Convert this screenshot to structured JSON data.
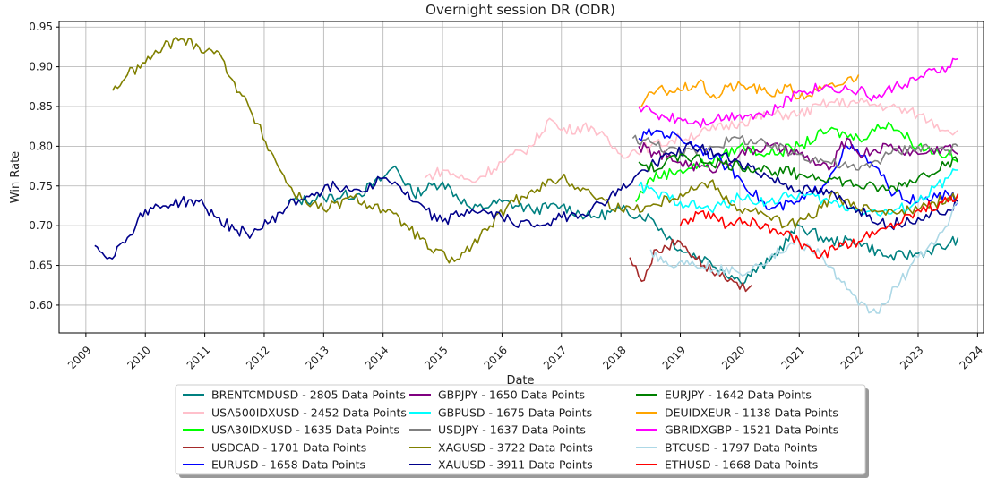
{
  "chart_data": {
    "type": "line",
    "title": "Overnight session DR (ODR)",
    "xlabel": "Date",
    "ylabel": "Win Rate",
    "xlim": [
      2008.55,
      2024.1
    ],
    "ylim": [
      0.565,
      0.957
    ],
    "xticks": [
      "2009",
      "2010",
      "2011",
      "2012",
      "2013",
      "2014",
      "2015",
      "2016",
      "2017",
      "2018",
      "2019",
      "2020",
      "2021",
      "2022",
      "2023",
      "2024"
    ],
    "yticks": [
      "0.60",
      "0.65",
      "0.70",
      "0.75",
      "0.80",
      "0.85",
      "0.90",
      "0.95"
    ],
    "grid": true,
    "legend_position": "bottom-center",
    "series": [
      {
        "name": "BRENTCMDUSD - 2805 Data Points",
        "color": "#008080",
        "x": [
          2012.4,
          2013.0,
          2013.6,
          2014.0,
          2014.2,
          2014.5,
          2015.0,
          2015.5,
          2016.0,
          2016.5,
          2017.0,
          2017.5,
          2018.0,
          2018.5,
          2019.0,
          2019.5,
          2020.0,
          2020.5,
          2021.0,
          2021.5,
          2022.0,
          2022.5,
          2023.0,
          2023.5,
          2023.67
        ],
        "y": [
          0.73,
          0.735,
          0.74,
          0.76,
          0.775,
          0.74,
          0.755,
          0.72,
          0.73,
          0.72,
          0.725,
          0.71,
          0.72,
          0.71,
          0.67,
          0.655,
          0.63,
          0.655,
          0.7,
          0.68,
          0.68,
          0.66,
          0.665,
          0.675,
          0.685
        ]
      },
      {
        "name": "USA500IDXUSD - 2452 Data Points",
        "color": "#ffc0cb",
        "x": [
          2014.7,
          2015.0,
          2015.5,
          2016.0,
          2016.5,
          2016.8,
          2017.0,
          2017.5,
          2018.0,
          2018.5,
          2019.0,
          2019.5,
          2020.0,
          2020.5,
          2021.0,
          2021.5,
          2022.0,
          2022.5,
          2023.0,
          2023.5,
          2023.67
        ],
        "y": [
          0.76,
          0.77,
          0.755,
          0.78,
          0.8,
          0.835,
          0.82,
          0.825,
          0.79,
          0.8,
          0.81,
          0.82,
          0.83,
          0.84,
          0.84,
          0.855,
          0.855,
          0.85,
          0.84,
          0.82,
          0.82
        ]
      },
      {
        "name": "USA30IDXUSD - 1635 Data Points",
        "color": "#00ff00",
        "x": [
          2018.25,
          2018.5,
          2019.0,
          2019.5,
          2020.0,
          2020.5,
          2021.0,
          2021.5,
          2022.0,
          2022.5,
          2023.0,
          2023.5,
          2023.67
        ],
        "y": [
          0.73,
          0.76,
          0.77,
          0.78,
          0.8,
          0.79,
          0.8,
          0.82,
          0.81,
          0.83,
          0.8,
          0.79,
          0.78
        ]
      },
      {
        "name": "USDCAD - 1701 Data Points",
        "color": "#a52a2a",
        "x": [
          2018.15,
          2018.35,
          2018.6,
          2019.0,
          2019.4,
          2019.8,
          2020.0,
          2020.2
        ],
        "y": [
          0.66,
          0.63,
          0.67,
          0.68,
          0.65,
          0.63,
          0.62,
          0.625
        ]
      },
      {
        "name": "EURUSD - 1658 Data Points",
        "color": "#0000ff",
        "x": [
          2018.3,
          2018.6,
          2019.0,
          2019.3,
          2019.7,
          2020.0,
          2020.5,
          2021.0,
          2021.4,
          2021.8,
          2022.2,
          2022.6,
          2023.0,
          2023.5,
          2023.67
        ],
        "y": [
          0.81,
          0.82,
          0.81,
          0.8,
          0.78,
          0.76,
          0.72,
          0.73,
          0.75,
          0.8,
          0.78,
          0.74,
          0.73,
          0.74,
          0.73
        ]
      },
      {
        "name": "GBPJPY - 1650 Data Points",
        "color": "#800080",
        "x": [
          2018.3,
          2018.6,
          2019.0,
          2019.5,
          2020.0,
          2020.5,
          2021.0,
          2021.5,
          2021.8,
          2022.0,
          2022.5,
          2023.0,
          2023.5,
          2023.67
        ],
        "y": [
          0.8,
          0.79,
          0.78,
          0.77,
          0.79,
          0.8,
          0.79,
          0.77,
          0.81,
          0.79,
          0.8,
          0.79,
          0.8,
          0.79
        ]
      },
      {
        "name": "GBPUSD - 1675 Data Points",
        "color": "#00ffff",
        "x": [
          2018.3,
          2018.6,
          2019.0,
          2019.5,
          2020.0,
          2020.5,
          2021.0,
          2021.5,
          2022.0,
          2022.5,
          2023.0,
          2023.5,
          2023.67
        ],
        "y": [
          0.75,
          0.74,
          0.73,
          0.72,
          0.735,
          0.73,
          0.74,
          0.73,
          0.72,
          0.715,
          0.73,
          0.76,
          0.77
        ]
      },
      {
        "name": "USDJPY - 1637 Data Points",
        "color": "#808080",
        "x": [
          2018.2,
          2018.5,
          2019.0,
          2019.5,
          2020.0,
          2020.5,
          2021.0,
          2021.5,
          2022.0,
          2022.5,
          2023.0,
          2023.5,
          2023.67
        ],
        "y": [
          0.81,
          0.805,
          0.79,
          0.8,
          0.81,
          0.8,
          0.79,
          0.78,
          0.77,
          0.79,
          0.8,
          0.795,
          0.8
        ]
      },
      {
        "name": "XAGUSD - 3722 Data Points",
        "color": "#808000",
        "x": [
          2009.45,
          2009.7,
          2010.0,
          2010.3,
          2010.6,
          2010.9,
          2011.2,
          2011.5,
          2011.8,
          2012.2,
          2012.5,
          2013.0,
          2013.5,
          2014.0,
          2014.4,
          2014.8,
          2015.2,
          2015.5,
          2015.8,
          2016.2,
          2016.5,
          2017.0,
          2017.5,
          2018.0,
          2018.5,
          2019.0,
          2019.5,
          2020.0,
          2020.4,
          2020.8,
          2021.2,
          2021.6,
          2022.0,
          2022.5,
          2023.0,
          2023.5,
          2023.67
        ],
        "y": [
          0.87,
          0.89,
          0.905,
          0.925,
          0.935,
          0.925,
          0.92,
          0.88,
          0.84,
          0.78,
          0.74,
          0.72,
          0.735,
          0.72,
          0.7,
          0.67,
          0.655,
          0.675,
          0.7,
          0.73,
          0.745,
          0.76,
          0.74,
          0.72,
          0.725,
          0.74,
          0.755,
          0.72,
          0.715,
          0.7,
          0.71,
          0.74,
          0.72,
          0.72,
          0.72,
          0.735,
          0.74
        ]
      },
      {
        "name": "XAUUSD - 3911 Data Points",
        "color": "#00008b",
        "x": [
          2009.15,
          2009.4,
          2009.7,
          2010.0,
          2010.3,
          2010.6,
          2010.9,
          2011.2,
          2011.5,
          2011.8,
          2012.1,
          2012.4,
          2012.8,
          2013.2,
          2013.6,
          2014.0,
          2014.2,
          2014.5,
          2015.0,
          2015.5,
          2016.0,
          2016.5,
          2017.0,
          2017.5,
          2018.0,
          2018.4,
          2018.8,
          2019.2,
          2019.6,
          2020.0,
          2020.5,
          2021.0,
          2021.5,
          2022.0,
          2022.5,
          2023.0,
          2023.5,
          2023.67
        ],
        "y": [
          0.675,
          0.66,
          0.685,
          0.72,
          0.725,
          0.73,
          0.73,
          0.71,
          0.695,
          0.69,
          0.705,
          0.725,
          0.74,
          0.75,
          0.745,
          0.76,
          0.755,
          0.73,
          0.705,
          0.72,
          0.71,
          0.7,
          0.71,
          0.72,
          0.745,
          0.77,
          0.79,
          0.8,
          0.79,
          0.78,
          0.76,
          0.745,
          0.74,
          0.72,
          0.7,
          0.71,
          0.72,
          0.73
        ]
      },
      {
        "name": "EURJPY - 1642 Data Points",
        "color": "#008000",
        "x": [
          2018.3,
          2018.6,
          2019.0,
          2019.5,
          2020.0,
          2020.5,
          2021.0,
          2021.5,
          2022.0,
          2022.5,
          2023.0,
          2023.5,
          2023.67
        ],
        "y": [
          0.78,
          0.77,
          0.79,
          0.78,
          0.775,
          0.77,
          0.765,
          0.76,
          0.75,
          0.745,
          0.76,
          0.78,
          0.78
        ]
      },
      {
        "name": "DEUIDXEUR - 1138 Data Points",
        "color": "#ffa500",
        "x": [
          2018.3,
          2018.6,
          2019.0,
          2019.3,
          2019.6,
          2019.8,
          2020.2,
          2020.5,
          2020.8,
          2021.0,
          2021.3,
          2021.6,
          2022.0
        ],
        "y": [
          0.85,
          0.87,
          0.87,
          0.88,
          0.86,
          0.875,
          0.875,
          0.865,
          0.875,
          0.86,
          0.87,
          0.875,
          0.89
        ]
      },
      {
        "name": "GBRIDXGBP - 1521 Data Points",
        "color": "#ff00ff",
        "x": [
          2018.3,
          2018.6,
          2019.0,
          2019.3,
          2019.6,
          2020.0,
          2020.5,
          2021.0,
          2021.5,
          2022.0,
          2022.3,
          2022.6,
          2023.0,
          2023.5,
          2023.67
        ],
        "y": [
          0.85,
          0.84,
          0.835,
          0.83,
          0.835,
          0.84,
          0.84,
          0.87,
          0.875,
          0.87,
          0.86,
          0.875,
          0.885,
          0.9,
          0.91
        ]
      },
      {
        "name": "BTCUSD - 1797 Data Points",
        "color": "#add8e6",
        "x": [
          2018.5,
          2018.8,
          2019.2,
          2019.6,
          2020.0,
          2020.5,
          2021.0,
          2021.4,
          2021.8,
          2022.0,
          2022.3,
          2022.7,
          2023.0,
          2023.5,
          2023.67
        ],
        "y": [
          0.67,
          0.65,
          0.655,
          0.645,
          0.64,
          0.66,
          0.68,
          0.66,
          0.62,
          0.6,
          0.59,
          0.63,
          0.66,
          0.7,
          0.73
        ]
      },
      {
        "name": "ETHUSD - 1668 Data Points",
        "color": "#ff0000",
        "x": [
          2019.0,
          2019.3,
          2019.6,
          2019.8,
          2020.0,
          2020.3,
          2020.6,
          2021.0,
          2021.3,
          2021.6,
          2022.0,
          2022.5,
          2023.0,
          2023.5,
          2023.67
        ],
        "y": [
          0.7,
          0.715,
          0.71,
          0.7,
          0.71,
          0.7,
          0.695,
          0.68,
          0.66,
          0.67,
          0.68,
          0.7,
          0.72,
          0.73,
          0.74
        ]
      }
    ]
  }
}
